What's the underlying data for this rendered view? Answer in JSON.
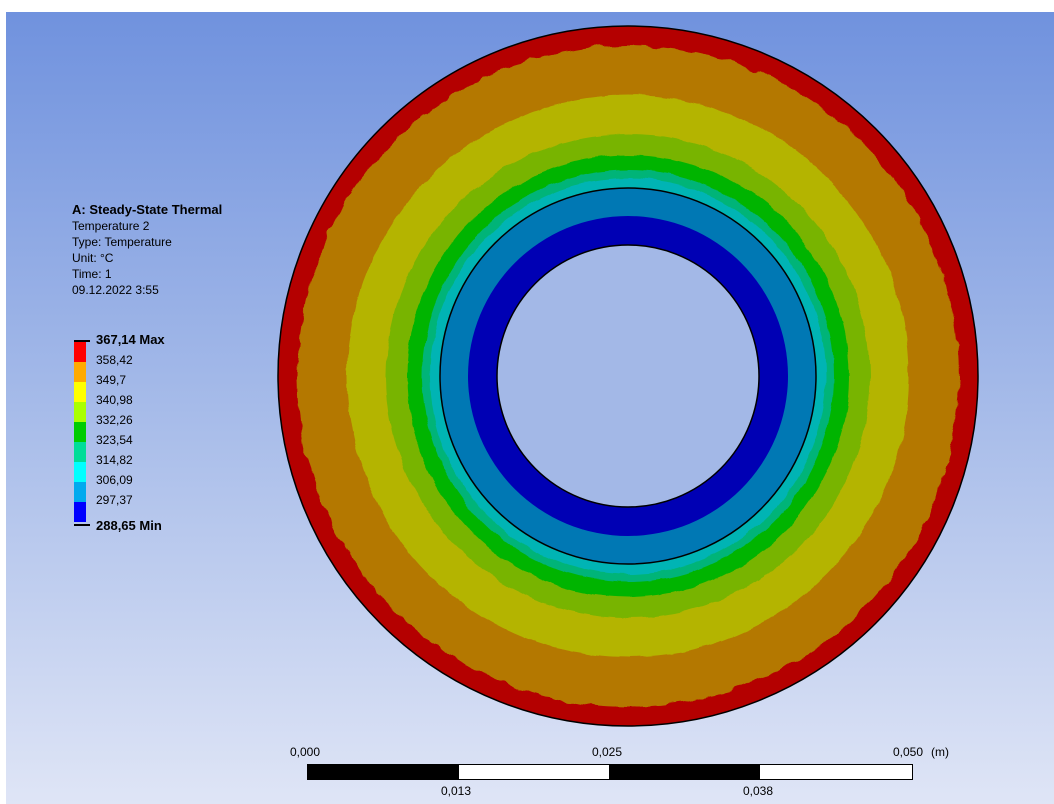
{
  "legend": {
    "title": "A: Steady-State Thermal",
    "result_name": "Temperature 2",
    "type": "Type: Temperature",
    "unit": "Unit: °C",
    "time": "Time: 1",
    "date": "09.12.2022 3:55"
  },
  "colorbar": {
    "max_label": "367,14 Max",
    "min_label": "288,65 Min",
    "labels": [
      "358,42",
      "349,7",
      "340,98",
      "332,26",
      "323,54",
      "314,82",
      "306,09",
      "297,37"
    ],
    "colors": [
      "#ff0000",
      "#ffaa00",
      "#ffff00",
      "#aaff00",
      "#00cc00",
      "#00dd99",
      "#00ffff",
      "#00aaee",
      "#0000ff"
    ]
  },
  "contour_colors": {
    "outer_red": "#b40000",
    "orange": "#b47800",
    "yellow": "#b4b400",
    "lime": "#78b400",
    "green": "#00b400",
    "teal_green": "#00b478",
    "cyan": "#00b4b4",
    "blue_light": "#0078b4",
    "blue": "#0000b4"
  },
  "scale_bar": {
    "top_labels": [
      "0,000",
      "0,025",
      "0,050"
    ],
    "unit": "(m)",
    "bottom_labels": [
      "0,013",
      "0,038"
    ]
  }
}
